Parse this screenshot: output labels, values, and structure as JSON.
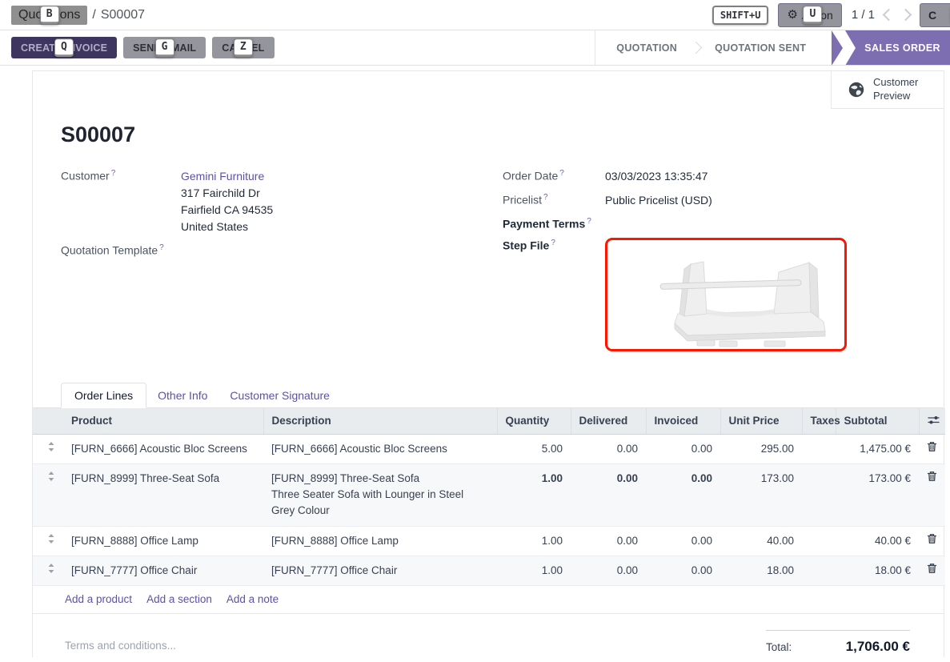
{
  "topbar": {
    "breadcrumb": {
      "root": "Quotations",
      "separator": "/",
      "current": "S00007"
    },
    "hints": {
      "breadcrumb": "B",
      "page": "SHIFT+U",
      "action": "U",
      "create_invoice": "Q",
      "send_email": "G",
      "cancel": "Z",
      "partial": "C"
    },
    "action_label": "Action",
    "pager": {
      "value": "1 / 1"
    }
  },
  "actionbar": {
    "buttons": [
      {
        "id": "create_invoice",
        "label": "CREATE INVOICE"
      },
      {
        "id": "send_email",
        "label": "SEND EMAIL"
      },
      {
        "id": "cancel",
        "label": "CANCEL"
      }
    ],
    "statusbar": [
      {
        "label": "QUOTATION",
        "active": false
      },
      {
        "label": "QUOTATION SENT",
        "active": false
      },
      {
        "label": "SALES ORDER",
        "active": true
      }
    ]
  },
  "sheet": {
    "customer_preview_label": "Customer Preview",
    "title": "S00007",
    "help_marker": "?",
    "fields": {
      "customer": {
        "label": "Customer",
        "value": "Gemini Furniture",
        "address": [
          "317 Fairchild Dr",
          "Fairfield CA 94535",
          "United States"
        ]
      },
      "quotation_template": {
        "label": "Quotation Template",
        "value": ""
      },
      "order_date": {
        "label": "Order Date",
        "value": "03/03/2023 13:35:47"
      },
      "pricelist": {
        "label": "Pricelist",
        "value": "Public Pricelist (USD)"
      },
      "payment_terms": {
        "label": "Payment Terms",
        "value": ""
      },
      "step_file": {
        "label": "Step File"
      }
    }
  },
  "tabs": [
    {
      "label": "Order Lines",
      "active": true
    },
    {
      "label": "Other Info",
      "active": false
    },
    {
      "label": "Customer Signature",
      "active": false
    }
  ],
  "order_lines": {
    "headers": [
      "Product",
      "Description",
      "Quantity",
      "Delivered",
      "Invoiced",
      "Unit Price",
      "Taxes",
      "Subtotal"
    ],
    "rows": [
      {
        "product": "[FURN_6666] Acoustic Bloc Screens",
        "description": [
          "[FURN_6666] Acoustic Bloc Screens"
        ],
        "quantity": "5.00",
        "delivered": "0.00",
        "invoiced": "0.00",
        "unit_price": "295.00",
        "taxes": "",
        "subtotal": "1,475.00 €",
        "highlight_qty": false
      },
      {
        "product": "[FURN_8999] Three-Seat Sofa",
        "description": [
          "[FURN_8999] Three-Seat Sofa",
          "Three Seater Sofa with Lounger in Steel Grey Colour"
        ],
        "quantity": "1.00",
        "delivered": "0.00",
        "invoiced": "0.00",
        "unit_price": "173.00",
        "taxes": "",
        "subtotal": "173.00 €",
        "highlight_qty": true
      },
      {
        "product": "[FURN_8888] Office Lamp",
        "description": [
          "[FURN_8888] Office Lamp"
        ],
        "quantity": "1.00",
        "delivered": "0.00",
        "invoiced": "0.00",
        "unit_price": "40.00",
        "taxes": "",
        "subtotal": "40.00 €",
        "highlight_qty": false
      },
      {
        "product": "[FURN_7777] Office Chair",
        "description": [
          "[FURN_7777] Office Chair"
        ],
        "quantity": "1.00",
        "delivered": "0.00",
        "invoiced": "0.00",
        "unit_price": "18.00",
        "taxes": "",
        "subtotal": "18.00 €",
        "highlight_qty": false
      }
    ],
    "add_links": [
      "Add a product",
      "Add a section",
      "Add a note"
    ]
  },
  "footer": {
    "terms_placeholder": "Terms and conditions...",
    "total_label": "Total:",
    "total_value": "1,706.00 €"
  },
  "colors": {
    "accent_purple": "#5c51a6",
    "status_active_purple": "#7d6eb2",
    "primary_button": "#3e3561",
    "hint_overlay_gray": "#94949c",
    "highlight_teal": "#0c7589",
    "step_file_border": "#fe1400",
    "table_header_bg": "#e9ecef"
  }
}
